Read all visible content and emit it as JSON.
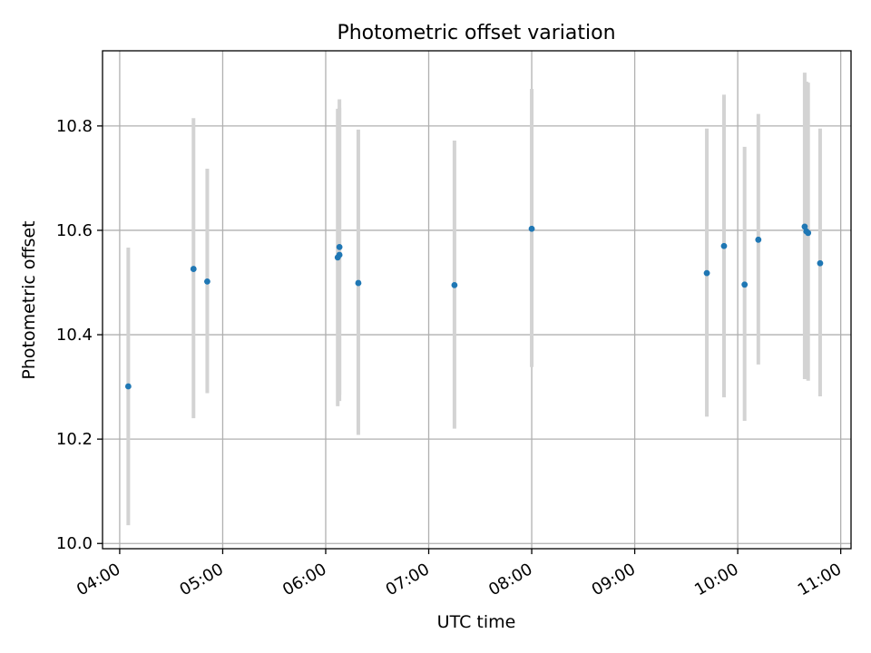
{
  "chart_data": {
    "type": "scatter",
    "title": "Photometric offset variation",
    "xlabel": "UTC time",
    "ylabel": "Photometric offset",
    "grid": true,
    "x_axis_kind": "time-of-day",
    "xlim": [
      "03:50",
      "11:06"
    ],
    "ylim": [
      9.99,
      10.944
    ],
    "xticks": [
      "04:00",
      "05:00",
      "06:00",
      "07:00",
      "08:00",
      "09:00",
      "10:00",
      "11:00"
    ],
    "yticks": [
      "10.0",
      "10.2",
      "10.4",
      "10.6",
      "10.8"
    ],
    "series": [
      {
        "marker_color": "#1f77b4",
        "errorbar_color": "#d3d3d3",
        "points": [
          {
            "x": "04:05",
            "y": 10.301,
            "ymin": 10.035,
            "ymax": 10.567
          },
          {
            "x": "04:43",
            "y": 10.526,
            "ymin": 10.24,
            "ymax": 10.815
          },
          {
            "x": "04:51",
            "y": 10.502,
            "ymin": 10.288,
            "ymax": 10.718
          },
          {
            "x": "06:07",
            "y": 10.548,
            "ymin": 10.263,
            "ymax": 10.833
          },
          {
            "x": "06:08",
            "y": 10.553,
            "ymin": 10.273,
            "ymax": 10.835
          },
          {
            "x": "06:08",
            "y": 10.568,
            "ymin": 10.285,
            "ymax": 10.851
          },
          {
            "x": "06:19",
            "y": 10.499,
            "ymin": 10.208,
            "ymax": 10.793
          },
          {
            "x": "07:15",
            "y": 10.495,
            "ymin": 10.22,
            "ymax": 10.772
          },
          {
            "x": "08:00",
            "y": 10.603,
            "ymin": 10.338,
            "ymax": 10.871
          },
          {
            "x": "09:42",
            "y": 10.518,
            "ymin": 10.243,
            "ymax": 10.795
          },
          {
            "x": "09:52",
            "y": 10.57,
            "ymin": 10.28,
            "ymax": 10.86
          },
          {
            "x": "10:04",
            "y": 10.496,
            "ymin": 10.235,
            "ymax": 10.76
          },
          {
            "x": "10:12",
            "y": 10.582,
            "ymin": 10.343,
            "ymax": 10.823
          },
          {
            "x": "10:39",
            "y": 10.607,
            "ymin": 10.315,
            "ymax": 10.902
          },
          {
            "x": "10:40",
            "y": 10.598,
            "ymin": 10.318,
            "ymax": 10.885
          },
          {
            "x": "10:41",
            "y": 10.595,
            "ymin": 10.312,
            "ymax": 10.883
          },
          {
            "x": "10:48",
            "y": 10.537,
            "ymin": 10.282,
            "ymax": 10.795
          }
        ]
      }
    ]
  }
}
